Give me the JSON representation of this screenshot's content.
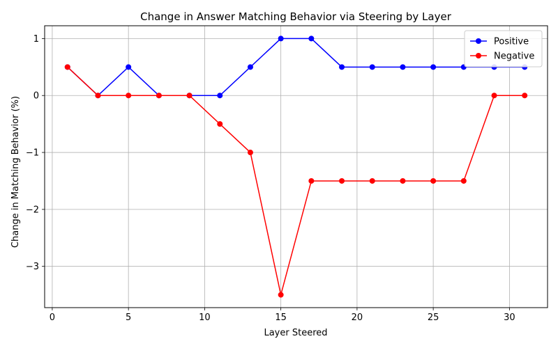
{
  "chart_data": {
    "type": "line",
    "title": "Change in Answer Matching Behavior via Steering by Layer",
    "xlabel": "Layer Steered",
    "ylabel": "Change in Matching Behavior (%)",
    "xlim": [
      -0.5,
      32.5
    ],
    "ylim": [
      -3.725,
      1.225
    ],
    "xticks": [
      0,
      5,
      10,
      15,
      20,
      25,
      30
    ],
    "yticks": [
      -3,
      -2,
      -1,
      0,
      1
    ],
    "ytick_labels": [
      "−3",
      "−2",
      "−1",
      "0",
      "1"
    ],
    "grid": true,
    "legend_position": "top-right",
    "x": [
      1,
      3,
      5,
      7,
      9,
      11,
      13,
      15,
      17,
      19,
      21,
      23,
      25,
      27,
      29,
      31
    ],
    "series": [
      {
        "name": "Positive",
        "color": "#0000ff",
        "marker": "circle",
        "values": [
          0.5,
          0,
          0.5,
          0,
          0,
          0,
          0.5,
          1,
          1,
          0.5,
          0.5,
          0.5,
          0.5,
          0.5,
          0.5,
          0.5
        ]
      },
      {
        "name": "Negative",
        "color": "#ff0000",
        "marker": "circle",
        "values": [
          0.5,
          0,
          0,
          0,
          0,
          -0.5,
          -1,
          -3.5,
          -1.5,
          -1.5,
          -1.5,
          -1.5,
          -1.5,
          -1.5,
          0,
          0
        ]
      }
    ]
  }
}
